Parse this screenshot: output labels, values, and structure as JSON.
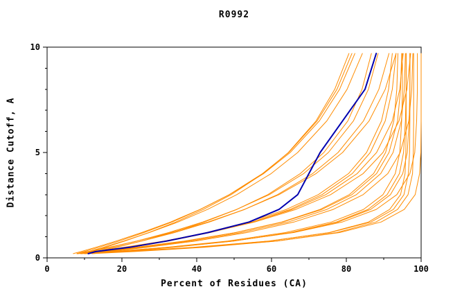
{
  "page": {
    "title": "R0992"
  },
  "chart_data": {
    "type": "line",
    "title": "R0992",
    "xlabel": "Percent of Residues (CA)",
    "ylabel": "Distance Cutoff, A",
    "xlim": [
      0,
      100
    ],
    "ylim": [
      0,
      10
    ],
    "x_ticks": [
      0,
      20,
      40,
      60,
      80,
      100
    ],
    "y_ticks": [
      0,
      5,
      10
    ],
    "x_minor_step": 10,
    "y_minor_step": 1,
    "grid": false,
    "legend_position": "none",
    "colors": {
      "ensemble": "#ff8c00",
      "highlight": "#0000b0",
      "frame": "#000000",
      "text": "#000000",
      "background": "#ffffff"
    },
    "y_grid": [
      0.2,
      0.3,
      0.5,
      0.8,
      1.2,
      1.7,
      2.3,
      3,
      4,
      5,
      6.5,
      8,
      9.7
    ],
    "highlight_x": [
      11,
      13,
      22,
      32,
      43,
      54,
      62,
      67,
      70,
      73,
      79,
      85,
      88
    ],
    "ensemble_x": [
      [
        10,
        21.4,
        40,
        59.5,
        75.4,
        85.9,
        91.6,
        94.5,
        95.7,
        95.9,
        96,
        96,
        96
      ],
      [
        12,
        23.4,
        42,
        61.5,
        77.4,
        87.9,
        93.7,
        96.5,
        97.7,
        97.9,
        98,
        98,
        98
      ],
      [
        9,
        21.1,
        40.8,
        61.4,
        78.2,
        89.3,
        95.5,
        98.4,
        99.6,
        99.9,
        100,
        100,
        100
      ],
      [
        8,
        19.8,
        39.1,
        59.3,
        75.6,
        86.6,
        92.6,
        95.4,
        96.6,
        96.9,
        97,
        97,
        97
      ],
      [
        10,
        18.1,
        32,
        48.3,
        63.7,
        76,
        84.6,
        89.8,
        93.1,
        94.3,
        94.8,
        95,
        95
      ],
      [
        11,
        19.2,
        33.3,
        49.8,
        65.4,
        77.8,
        86.5,
        91.8,
        95.1,
        96.3,
        96.8,
        97,
        97
      ],
      [
        9,
        17.6,
        32.3,
        49.6,
        65.9,
        78.9,
        88,
        93.5,
        97,
        98.3,
        98.8,
        99,
        99
      ],
      [
        12,
        20,
        33.8,
        49.9,
        65.1,
        77.3,
        85.8,
        90.9,
        94.2,
        95.3,
        95.8,
        96,
        96
      ],
      [
        9,
        14.4,
        24.4,
        37.1,
        50.4,
        62.7,
        73,
        80.8,
        87.3,
        90.5,
        92.7,
        93.5,
        93.8
      ],
      [
        10,
        15.5,
        25.6,
        38.4,
        51.9,
        64.4,
        74.8,
        82.7,
        89.2,
        92.5,
        94.7,
        95.5,
        95.8
      ],
      [
        11,
        16.6,
        26.7,
        39.7,
        53.4,
        66,
        76.5,
        84.5,
        91.1,
        94.4,
        96.7,
        97.5,
        97.8
      ],
      [
        8,
        13.6,
        23.7,
        36.7,
        50.4,
        63,
        73.5,
        81.5,
        88.1,
        91.4,
        93.7,
        94.5,
        94.8
      ],
      [
        10,
        14.1,
        21.5,
        31.5,
        42.6,
        53.8,
        64,
        72.5,
        80.6,
        85.4,
        89.4,
        91.3,
        92.3
      ],
      [
        9,
        13.3,
        21.1,
        31.5,
        43.2,
        54.9,
        65.6,
        74.5,
        82.9,
        88.1,
        92.3,
        94.3,
        95.2
      ],
      [
        8,
        12.4,
        20.5,
        31.3,
        43.4,
        55.5,
        66.5,
        75.8,
        84.5,
        89.8,
        94.1,
        96.2,
        97.2
      ],
      [
        11,
        15.1,
        22.5,
        32.5,
        43.6,
        54.8,
        65,
        73.5,
        81.6,
        86.4,
        90.4,
        92.3,
        93.3
      ],
      [
        9,
        11.7,
        16.9,
        24,
        32.5,
        41.6,
        50.7,
        59.4,
        68.6,
        75.2,
        81.9,
        85.9,
        88.5
      ],
      [
        10,
        12.8,
        18.1,
        25.4,
        34.1,
        43.4,
        52.8,
        61.6,
        71,
        77.8,
        84.6,
        88.7,
        91.4
      ],
      [
        8,
        10.9,
        16.5,
        24.1,
        33.2,
        43,
        52.8,
        62,
        71.9,
        79,
        86.1,
        90.4,
        93.3
      ],
      [
        11,
        13.6,
        18.5,
        25.3,
        33.4,
        42,
        50.7,
        59,
        67.7,
        74,
        80.4,
        84.2,
        86.7
      ],
      [
        8,
        10,
        13.8,
        19.3,
        25.9,
        33.4,
        41,
        48.7,
        57.6,
        64.6,
        72.2,
        77.5,
        81.5
      ],
      [
        9,
        11.1,
        15,
        20.5,
        27.3,
        35,
        42.9,
        50.7,
        59.9,
        67,
        74.8,
        80.2,
        84.3
      ],
      [
        10,
        12,
        15.6,
        20.8,
        27.2,
        34.4,
        41.8,
        49.2,
        57.8,
        64.5,
        71.9,
        76.9,
        80.7
      ],
      [
        7,
        9.1,
        13,
        18.5,
        25.3,
        33,
        40.9,
        48.7,
        57.9,
        65,
        72.8,
        78.2,
        82.3
      ]
    ]
  }
}
